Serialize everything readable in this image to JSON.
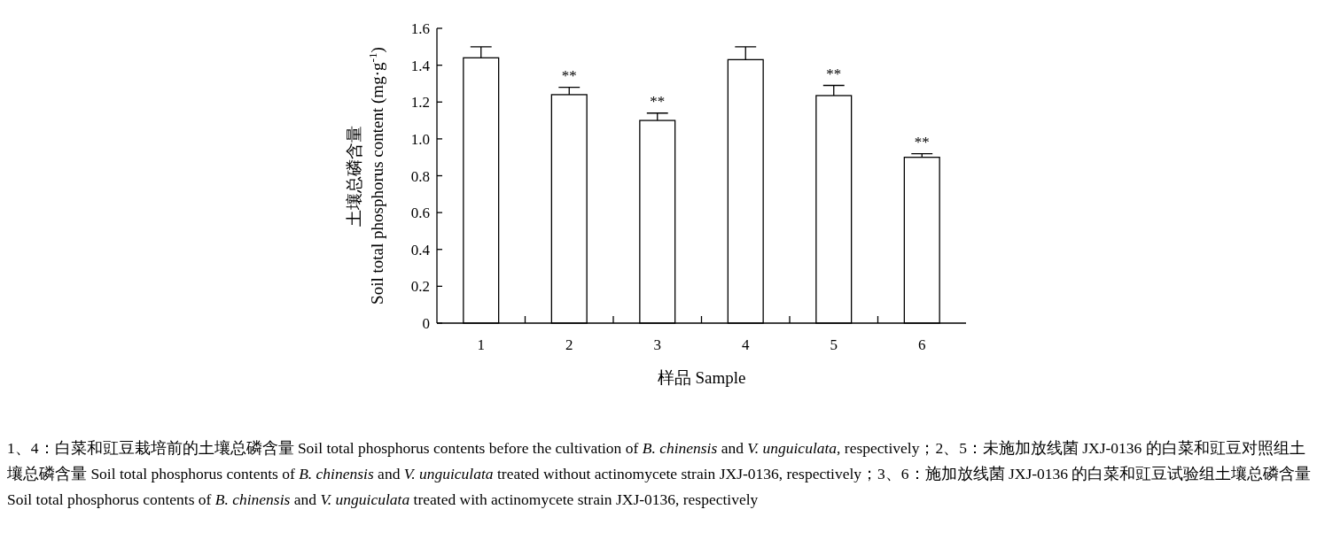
{
  "chart_data": {
    "type": "bar",
    "xlabel": "样品 Sample",
    "ylabel": "土壤总磷含量\nSoil total phosphorus content (mg·g$^{-1}$)",
    "categories": [
      "1",
      "2",
      "3",
      "4",
      "5",
      "6"
    ],
    "values": [
      1.44,
      1.24,
      1.1,
      1.43,
      1.235,
      0.9
    ],
    "errors": [
      [
        1.44,
        1.5
      ],
      [
        1.24,
        1.28
      ],
      [
        1.1,
        1.14
      ],
      [
        1.43,
        1.5
      ],
      [
        1.235,
        1.29
      ],
      [
        0.9,
        0.92
      ]
    ],
    "color": "#ffffff",
    "ylim": [
      0,
      1.6
    ],
    "yticks": [
      {
        "value": 0,
        "label": "0"
      },
      0.2,
      0.4,
      0.6,
      0.8,
      {
        "value": 1,
        "label": "1.0"
      },
      1.2,
      1.4,
      1.6
    ],
    "grid": false,
    "annotations": [
      {
        "text": "**",
        "x": "2",
        "y": 1.28
      },
      {
        "text": "**",
        "x": "3",
        "y": 1.14
      },
      {
        "text": "**",
        "x": "5",
        "y": 1.29
      },
      {
        "text": "**",
        "x": "6",
        "y": 0.92
      },
      "1、4：白菜和豇豆栽培前的土壤总磷含量 Soil total phosphorus contents before the cultivation of *B. chinensis* and *V. unguiculata*, respectively；2、5：未施加放线菌 JXJ-0136 的白菜和豇豆对照组土壤总磷含量 Soil total phosphorus contents of *B. chinensis* and *V. unguiculata* treated without actinomycete strain JXJ-0136, respectively；3、6：施加放线菌 JXJ-0136 的白菜和豇豆试验组土壤总磷含量 Soil total phosphorus contents of *B. chinensis* and *V. unguiculata* treated with actinomycete strain JXJ-0136, respectively"
    ]
  }
}
